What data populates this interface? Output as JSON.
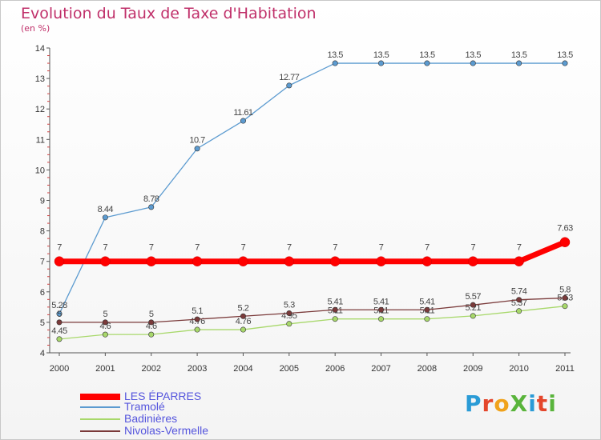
{
  "title": "Evolution du Taux de Taxe d'Habitation",
  "subtitle": "(en %)",
  "logo": {
    "text": "ProXiti",
    "colors": [
      "#2a9bd6",
      "#e4462b",
      "#f0a21b",
      "#59b43b",
      "#2a9bd6",
      "#e4462b",
      "#59b43b"
    ]
  },
  "chart_data": {
    "type": "line",
    "x": [
      "2000",
      "2001",
      "2002",
      "2003",
      "2004",
      "2005",
      "2006",
      "2007",
      "2008",
      "2009",
      "2010",
      "2011"
    ],
    "ylim": [
      4,
      14
    ],
    "yticks": [
      "4",
      "5",
      "6",
      "7",
      "8",
      "9",
      "10",
      "11",
      "12",
      "13",
      "14"
    ],
    "grid": false,
    "legend_position": "bottom-left",
    "series": [
      {
        "name": "LES ÉPARRES",
        "color": "#ff0000",
        "values": [
          7,
          7,
          7,
          7,
          7,
          7,
          7,
          7,
          7,
          7,
          7,
          7.63
        ],
        "labels": [
          "7",
          "7",
          "7",
          "7",
          "7",
          "7",
          "7",
          "7",
          "7",
          "7",
          "7",
          "7.63"
        ]
      },
      {
        "name": "Tramolé",
        "color": "#5c9bd0",
        "values": [
          5.28,
          8.44,
          8.78,
          10.7,
          11.61,
          12.77,
          13.5,
          13.5,
          13.5,
          13.5,
          13.5,
          13.5
        ],
        "labels": [
          "5.28",
          "8.44",
          "8.78",
          "10.7",
          "11.61",
          "12.77",
          "13.5",
          "13.5",
          "13.5",
          "13.5",
          "13.5",
          "13.5"
        ]
      },
      {
        "name": "Badinières",
        "color": "#a8d86b",
        "values": [
          4.45,
          4.6,
          4.6,
          4.76,
          4.76,
          4.95,
          5.11,
          5.11,
          5.11,
          5.21,
          5.37,
          5.53
        ],
        "labels": [
          "4.45",
          "4.6",
          "4.6",
          "4.76",
          "4.76",
          "4.95",
          "5.11",
          "5.11",
          "5.11",
          "5.21",
          "5.37",
          "5.53"
        ]
      },
      {
        "name": "Nivolas-Vermelle",
        "color": "#7a3a3a",
        "values": [
          5,
          5,
          5,
          5.1,
          5.2,
          5.3,
          5.41,
          5.41,
          5.41,
          5.57,
          5.74,
          5.8
        ],
        "labels": [
          "5",
          "5",
          "5",
          "5.1",
          "5.2",
          "5.3",
          "5.41",
          "5.41",
          "5.41",
          "5.57",
          "5.74",
          "5.8"
        ]
      }
    ]
  }
}
